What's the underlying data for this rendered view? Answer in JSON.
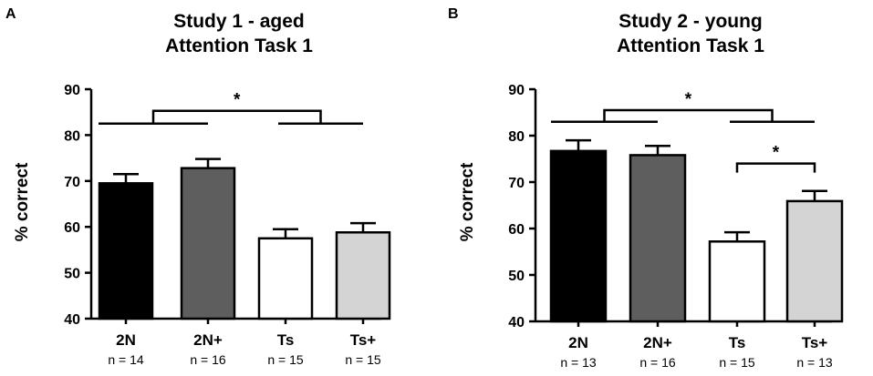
{
  "chart_data": [
    {
      "panel": "A",
      "type": "bar",
      "title_line1": "Study 1 - aged",
      "title_line2": "Attention Task 1",
      "ylabel": "% correct",
      "ylim": [
        40,
        90
      ],
      "yticks": [
        "40",
        "50",
        "60",
        "70",
        "80",
        "90"
      ],
      "categories": [
        "2N",
        "2N+",
        "Ts",
        "Ts+"
      ],
      "n_labels": [
        "n = 14",
        "n = 16",
        "n = 15",
        "n = 15"
      ],
      "values": [
        69.5,
        72.8,
        57.5,
        58.8
      ],
      "errors": [
        2.0,
        2.0,
        2.0,
        2.0
      ],
      "colors": [
        "#000000",
        "#5e5e5e",
        "#ffffff",
        "#d4d4d4"
      ],
      "significance": [
        {
          "type": "group",
          "left": [
            0,
            1
          ],
          "right": [
            2,
            3
          ],
          "label": "*",
          "y_level": 82.5,
          "bracket_top": 85.3
        }
      ]
    },
    {
      "panel": "B",
      "type": "bar",
      "title_line1": "Study 2 - young",
      "title_line2": "Attention Task 1",
      "ylabel": "% correct",
      "ylim": [
        40,
        90
      ],
      "yticks": [
        "40",
        "50",
        "60",
        "70",
        "80",
        "90"
      ],
      "categories": [
        "2N",
        "2N+",
        "Ts",
        "Ts+"
      ],
      "n_labels": [
        "n = 13",
        "n = 16",
        "n = 15",
        "n = 13"
      ],
      "values": [
        76.7,
        75.8,
        57.2,
        65.9
      ],
      "errors": [
        2.3,
        2.0,
        2.0,
        2.2
      ],
      "colors": [
        "#000000",
        "#5e5e5e",
        "#ffffff",
        "#d4d4d4"
      ],
      "significance": [
        {
          "type": "group",
          "left": [
            0,
            1
          ],
          "right": [
            2,
            3
          ],
          "label": "*",
          "y_level": 83.0,
          "bracket_top": 85.5
        },
        {
          "type": "pair",
          "between": [
            2,
            3
          ],
          "label": "*",
          "y_level": 74.0
        }
      ]
    }
  ]
}
